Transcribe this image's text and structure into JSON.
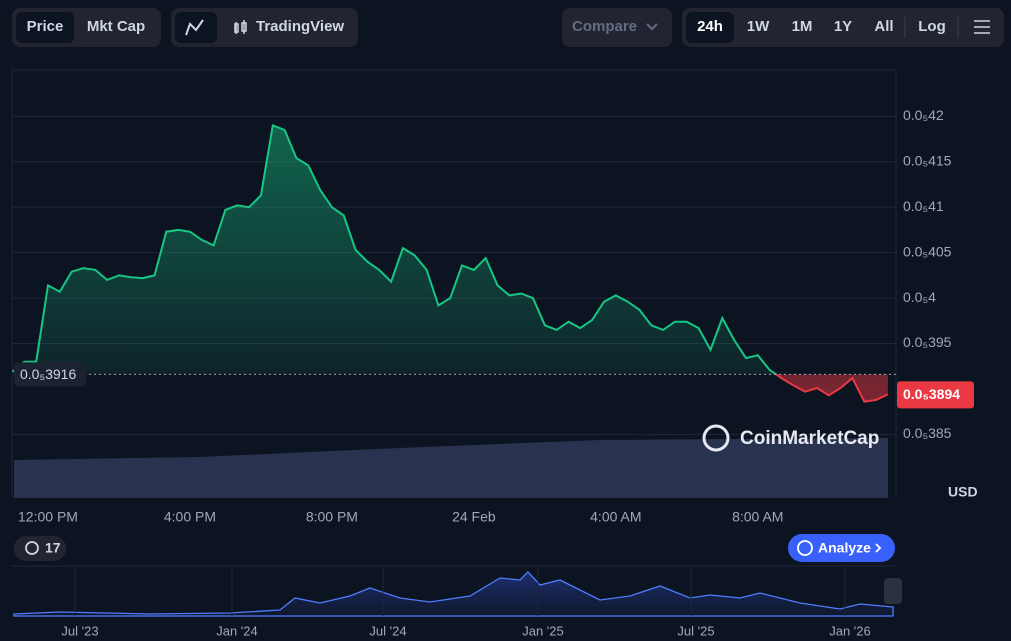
{
  "toolbar": {
    "metric": [
      "Price",
      "Mkt Cap"
    ],
    "chart_type": "TradingView",
    "compare": "Compare",
    "ranges": [
      "24h",
      "1W",
      "1M",
      "1Y",
      "All"
    ],
    "log": "Log"
  },
  "chart_data": {
    "type": "line",
    "categories": [
      null,
      null,
      null,
      "12:00 PM",
      null,
      null,
      null,
      null,
      null,
      null,
      null,
      null,
      null,
      null,
      null,
      "4:00 PM",
      null,
      null,
      null,
      null,
      null,
      null,
      null,
      null,
      null,
      null,
      null,
      "8:00 PM",
      null,
      null,
      null,
      null,
      null,
      null,
      null,
      null,
      null,
      null,
      null,
      "24 Feb",
      null,
      null,
      null,
      null,
      null,
      null,
      null,
      null,
      null,
      null,
      null,
      "4:00 AM",
      null,
      null,
      null,
      null,
      null,
      null,
      null,
      null,
      null,
      null,
      null,
      "8:00 AM",
      null,
      null,
      null,
      null,
      null,
      null,
      null,
      null,
      null,
      null,
      null
    ],
    "values": [
      3.919e-06,
      3.93e-06,
      3.93e-06,
      4.014e-06,
      4.007e-06,
      4.029e-06,
      4.033e-06,
      4.031e-06,
      4.02e-06,
      4.025e-06,
      4.023e-06,
      4.022e-06,
      4.025e-06,
      4.073e-06,
      4.075e-06,
      4.073e-06,
      4.064e-06,
      4.058e-06,
      4.097e-06,
      4.102e-06,
      4.1e-06,
      4.113e-06,
      4.19e-06,
      4.185e-06,
      4.154e-06,
      4.146e-06,
      4.119e-06,
      4.1e-06,
      4.091e-06,
      4.053e-06,
      4.04e-06,
      4.031e-06,
      4.018e-06,
      4.055e-06,
      4.047e-06,
      4.031e-06,
      3.992e-06,
      4e-06,
      4.036e-06,
      4.031e-06,
      4.044e-06,
      4.014e-06,
      4.003e-06,
      4.005e-06,
      4e-06,
      3.97e-06,
      3.965e-06,
      3.974e-06,
      3.967e-06,
      3.976e-06,
      3.996e-06,
      4.003e-06,
      3.996e-06,
      3.987e-06,
      3.97e-06,
      3.965e-06,
      3.974e-06,
      3.974e-06,
      3.967e-06,
      3.943e-06,
      3.978e-06,
      3.954e-06,
      3.934e-06,
      3.937e-06,
      3.921e-06,
      3.912e-06,
      3.904e-06,
      3.897e-06,
      3.901e-06,
      3.893e-06,
      3.901e-06,
      3.912e-06,
      3.886e-06,
      3.888e-06,
      3.894e-06
    ],
    "color_up": "#16c784",
    "color_down": "#ea3943",
    "ylim": [
      3.78e-06,
      4.251e-06
    ],
    "yticks": [
      {
        "value": 3.85e-06,
        "label": "0.0₅385"
      },
      {
        "value": 3.95e-06,
        "label": "0.0₅395"
      },
      {
        "value": 4e-06,
        "label": "0.0₅4"
      },
      {
        "value": 4.05e-06,
        "label": "0.0₅405"
      },
      {
        "value": 4.1e-06,
        "label": "0.0₅41"
      },
      {
        "value": 4.15e-06,
        "label": "0.0₅415"
      },
      {
        "value": 4.2e-06,
        "label": "0.0₅42"
      }
    ],
    "grid": true,
    "reference": {
      "value": 3.916e-06,
      "label": "0.0₅3916"
    },
    "last_price": {
      "value": 3.894e-06,
      "label": "0.0₅3894"
    },
    "unit": "USD",
    "watermark": "CoinMarketCap"
  },
  "badge": "17",
  "analyze": "Analyze",
  "navigator": {
    "labels": [
      "Jul '23",
      "Jan '24",
      "Jul '24",
      "Jan '25",
      "Jul '25",
      "Jan '26"
    ]
  }
}
